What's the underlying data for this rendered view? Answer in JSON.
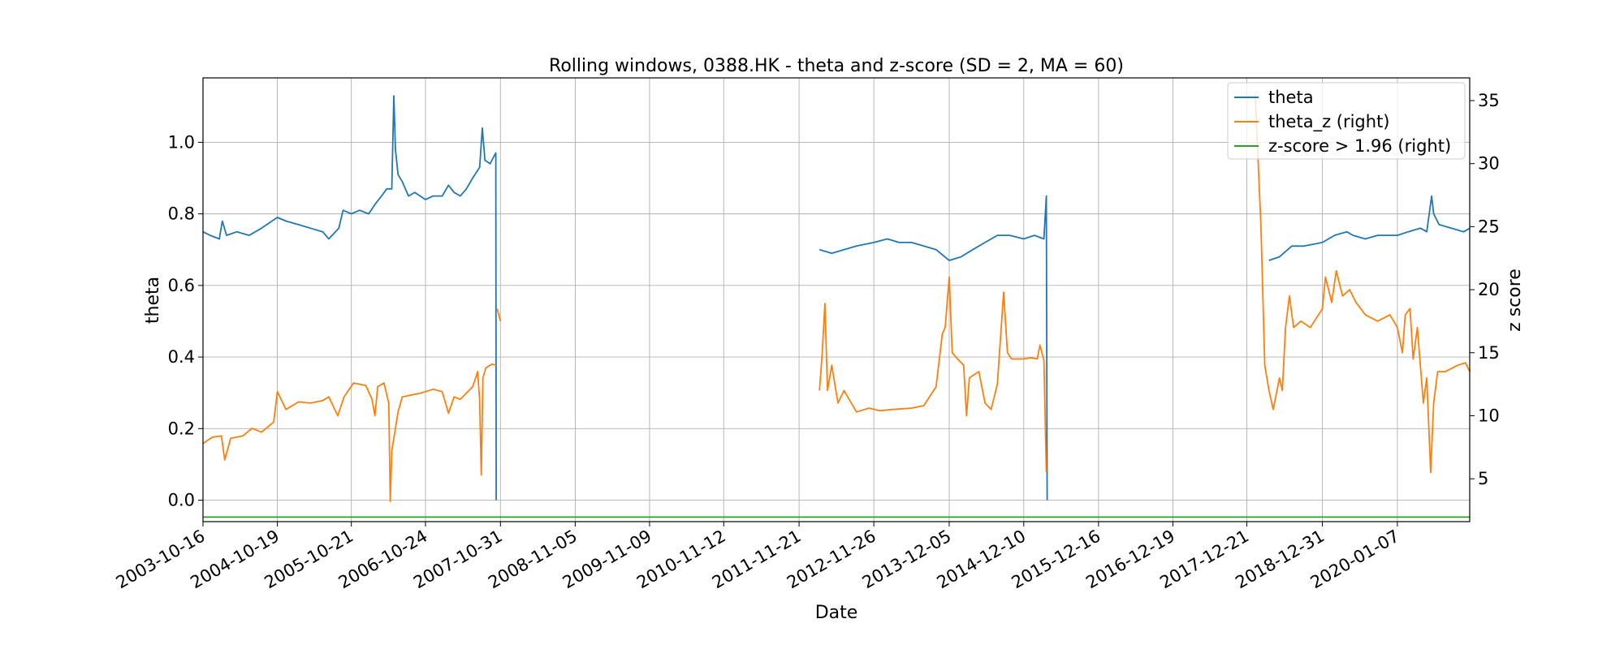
{
  "chart_data": {
    "type": "line",
    "title": "Rolling windows, 0388.HK - theta and z-score (SD = 2, MA = 60)",
    "xlabel": "Date",
    "ylabel": "theta",
    "ylabel_right": "z score",
    "xlim": [
      "2003-10-16",
      "2020-12-31"
    ],
    "ylim": [
      -0.06,
      1.18
    ],
    "ylim_right": [
      1.6,
      36.8
    ],
    "x_ticks": [
      "2003-10-16",
      "2004-10-19",
      "2005-10-21",
      "2006-10-24",
      "2007-10-31",
      "2008-11-05",
      "2009-11-09",
      "2010-11-12",
      "2011-11-21",
      "2012-11-26",
      "2013-12-05",
      "2014-12-10",
      "2015-12-16",
      "2016-12-19",
      "2017-12-21",
      "2018-12-31",
      "2020-01-07"
    ],
    "y_ticks": [
      "0.0",
      "0.2",
      "0.4",
      "0.6",
      "0.8",
      "1.0"
    ],
    "y_ticks_right": [
      "5",
      "10",
      "15",
      "20",
      "25",
      "30",
      "35"
    ],
    "grid": true,
    "legend_position": "top-right",
    "legend": [
      "theta",
      "theta_z (right)",
      "z-score > 1.96 (right)"
    ],
    "series": [
      {
        "name": "theta",
        "axis": "left",
        "color": "#1f77b4",
        "segments": [
          [
            [
              "2003-10-16",
              0.75
            ],
            [
              "2003-11-20",
              0.74
            ],
            [
              "2004-01-05",
              0.73
            ],
            [
              "2004-01-20",
              0.78
            ],
            [
              "2004-02-10",
              0.74
            ],
            [
              "2004-04-01",
              0.75
            ],
            [
              "2004-06-01",
              0.74
            ],
            [
              "2004-08-01",
              0.76
            ],
            [
              "2004-10-19",
              0.79
            ],
            [
              "2004-12-01",
              0.78
            ],
            [
              "2005-02-01",
              0.77
            ],
            [
              "2005-04-01",
              0.76
            ],
            [
              "2005-06-01",
              0.75
            ],
            [
              "2005-07-01",
              0.73
            ],
            [
              "2005-08-20",
              0.76
            ],
            [
              "2005-09-10",
              0.81
            ],
            [
              "2005-10-21",
              0.8
            ],
            [
              "2005-12-01",
              0.81
            ],
            [
              "2006-01-15",
              0.8
            ],
            [
              "2006-02-20",
              0.83
            ],
            [
              "2006-03-20",
              0.85
            ],
            [
              "2006-04-15",
              0.87
            ],
            [
              "2006-05-10",
              0.87
            ],
            [
              "2006-05-20",
              1.13
            ],
            [
              "2006-05-28",
              0.98
            ],
            [
              "2006-06-10",
              0.91
            ],
            [
              "2006-07-01",
              0.89
            ],
            [
              "2006-08-01",
              0.85
            ],
            [
              "2006-09-01",
              0.86
            ],
            [
              "2006-10-24",
              0.84
            ],
            [
              "2006-12-01",
              0.85
            ],
            [
              "2007-01-15",
              0.85
            ],
            [
              "2007-02-15",
              0.88
            ],
            [
              "2007-03-15",
              0.86
            ],
            [
              "2007-04-15",
              0.85
            ],
            [
              "2007-05-15",
              0.87
            ],
            [
              "2007-06-15",
              0.9
            ],
            [
              "2007-07-20",
              0.93
            ],
            [
              "2007-08-02",
              1.04
            ],
            [
              "2007-08-15",
              0.95
            ],
            [
              "2007-09-10",
              0.94
            ],
            [
              "2007-09-28",
              0.96
            ],
            [
              "2007-10-08",
              0.97
            ],
            [
              "2007-10-10",
              0.0
            ]
          ],
          [
            [
              "2012-03-01",
              0.7
            ],
            [
              "2012-05-01",
              0.69
            ],
            [
              "2012-07-01",
              0.7
            ],
            [
              "2012-09-01",
              0.71
            ],
            [
              "2012-11-26",
              0.72
            ],
            [
              "2013-02-01",
              0.73
            ],
            [
              "2013-04-01",
              0.72
            ],
            [
              "2013-06-01",
              0.72
            ],
            [
              "2013-08-01",
              0.71
            ],
            [
              "2013-10-01",
              0.7
            ],
            [
              "2013-12-05",
              0.67
            ],
            [
              "2014-02-01",
              0.68
            ],
            [
              "2014-04-01",
              0.7
            ],
            [
              "2014-06-01",
              0.72
            ],
            [
              "2014-08-01",
              0.74
            ],
            [
              "2014-10-01",
              0.74
            ],
            [
              "2014-12-10",
              0.73
            ],
            [
              "2015-02-01",
              0.74
            ],
            [
              "2015-03-20",
              0.73
            ],
            [
              "2015-04-01",
              0.85
            ],
            [
              "2015-04-05",
              0.0
            ]
          ],
          [
            [
              "2018-04-10",
              0.67
            ],
            [
              "2018-06-01",
              0.68
            ],
            [
              "2018-08-01",
              0.71
            ],
            [
              "2018-10-01",
              0.71
            ],
            [
              "2018-12-31",
              0.72
            ],
            [
              "2019-03-01",
              0.74
            ],
            [
              "2019-05-01",
              0.75
            ],
            [
              "2019-06-01",
              0.74
            ],
            [
              "2019-08-01",
              0.73
            ],
            [
              "2019-10-01",
              0.74
            ],
            [
              "2020-01-07",
              0.74
            ],
            [
              "2020-03-01",
              0.75
            ],
            [
              "2020-05-01",
              0.76
            ],
            [
              "2020-06-01",
              0.75
            ],
            [
              "2020-06-25",
              0.85
            ],
            [
              "2020-07-05",
              0.8
            ],
            [
              "2020-08-01",
              0.77
            ],
            [
              "2020-10-01",
              0.76
            ],
            [
              "2020-12-01",
              0.75
            ],
            [
              "2020-12-31",
              0.76
            ]
          ]
        ]
      },
      {
        "name": "theta_z (right)",
        "axis": "right",
        "color": "#ff7f0e",
        "segments": [
          [
            [
              "2003-10-16",
              7.8
            ],
            [
              "2003-12-01",
              8.3
            ],
            [
              "2004-01-15",
              8.4
            ],
            [
              "2004-02-01",
              6.5
            ],
            [
              "2004-03-01",
              8.2
            ],
            [
              "2004-05-01",
              8.4
            ],
            [
              "2004-06-15",
              9.0
            ],
            [
              "2004-08-01",
              8.7
            ],
            [
              "2004-10-01",
              9.5
            ],
            [
              "2004-10-19",
              11.9
            ],
            [
              "2004-12-01",
              10.5
            ],
            [
              "2005-02-01",
              11.1
            ],
            [
              "2005-04-01",
              11.0
            ],
            [
              "2005-06-01",
              11.2
            ],
            [
              "2005-07-01",
              11.5
            ],
            [
              "2005-08-15",
              10.0
            ],
            [
              "2005-09-15",
              11.5
            ],
            [
              "2005-11-01",
              12.6
            ],
            [
              "2006-01-01",
              12.4
            ],
            [
              "2006-02-01",
              11.3
            ],
            [
              "2006-02-15",
              10.0
            ],
            [
              "2006-03-01",
              12.3
            ],
            [
              "2006-04-01",
              12.6
            ],
            [
              "2006-04-25",
              11.0
            ],
            [
              "2006-05-02",
              3.2
            ],
            [
              "2006-05-10",
              7.2
            ],
            [
              "2006-06-10",
              10.3
            ],
            [
              "2006-07-01",
              11.5
            ],
            [
              "2006-08-01",
              11.6
            ],
            [
              "2006-10-01",
              11.8
            ],
            [
              "2006-12-01",
              12.1
            ],
            [
              "2007-01-15",
              11.9
            ],
            [
              "2007-02-15",
              10.2
            ],
            [
              "2007-03-15",
              11.5
            ],
            [
              "2007-04-15",
              11.3
            ],
            [
              "2007-05-15",
              11.8
            ],
            [
              "2007-06-15",
              12.3
            ],
            [
              "2007-07-10",
              13.5
            ],
            [
              "2007-07-20",
              11.2
            ],
            [
              "2007-07-28",
              5.3
            ],
            [
              "2007-08-05",
              13.0
            ],
            [
              "2007-08-20",
              13.8
            ],
            [
              "2007-09-20",
              14.1
            ],
            [
              "2007-10-10",
              14.0
            ]
          ],
          [
            [
              "2007-10-15",
              18.5
            ],
            [
              "2007-10-31",
              17.5
            ]
          ],
          [
            [
              "2012-03-01",
              12.0
            ],
            [
              "2012-03-15",
              15.0
            ],
            [
              "2012-03-28",
              18.9
            ],
            [
              "2012-04-10",
              12.0
            ],
            [
              "2012-05-01",
              14.0
            ],
            [
              "2012-06-01",
              11.0
            ],
            [
              "2012-07-01",
              12.0
            ],
            [
              "2012-09-01",
              10.3
            ],
            [
              "2012-11-01",
              10.6
            ],
            [
              "2012-12-26",
              10.4
            ],
            [
              "2013-03-01",
              10.5
            ],
            [
              "2013-06-01",
              10.6
            ],
            [
              "2013-08-01",
              10.8
            ],
            [
              "2013-10-01",
              12.3
            ],
            [
              "2013-11-01",
              16.5
            ],
            [
              "2013-11-15",
              17.0
            ],
            [
              "2013-12-05",
              21.0
            ],
            [
              "2013-12-20",
              15.0
            ],
            [
              "2014-01-15",
              14.5
            ],
            [
              "2014-02-15",
              14.0
            ],
            [
              "2014-03-01",
              10.0
            ],
            [
              "2014-03-15",
              13.0
            ],
            [
              "2014-05-01",
              13.5
            ],
            [
              "2014-06-01",
              11.0
            ],
            [
              "2014-07-01",
              10.5
            ],
            [
              "2014-08-01",
              12.5
            ],
            [
              "2014-09-01",
              19.8
            ],
            [
              "2014-09-20",
              15.0
            ],
            [
              "2014-10-10",
              14.5
            ],
            [
              "2014-11-01",
              14.5
            ],
            [
              "2014-12-10",
              14.5
            ],
            [
              "2015-01-15",
              14.6
            ],
            [
              "2015-02-15",
              14.5
            ],
            [
              "2015-02-28",
              15.6
            ],
            [
              "2015-03-20",
              14.4
            ],
            [
              "2015-04-01",
              5.5
            ]
          ],
          [
            [
              "2018-02-01",
              35.5
            ],
            [
              "2018-03-01",
              25.0
            ],
            [
              "2018-03-20",
              14.0
            ],
            [
              "2018-04-10",
              12.0
            ],
            [
              "2018-05-01",
              10.5
            ],
            [
              "2018-06-01",
              13.0
            ],
            [
              "2018-06-15",
              12.0
            ],
            [
              "2018-07-01",
              17.0
            ],
            [
              "2018-07-20",
              19.5
            ],
            [
              "2018-08-10",
              17.0
            ],
            [
              "2018-09-15",
              17.5
            ],
            [
              "2018-11-01",
              17.0
            ],
            [
              "2018-12-31",
              18.5
            ],
            [
              "2019-01-15",
              21.0
            ],
            [
              "2019-02-15",
              19.0
            ],
            [
              "2019-03-10",
              21.5
            ],
            [
              "2019-04-10",
              19.5
            ],
            [
              "2019-05-15",
              20.0
            ],
            [
              "2019-06-15",
              19.0
            ],
            [
              "2019-08-01",
              18.0
            ],
            [
              "2019-10-01",
              17.5
            ],
            [
              "2019-12-01",
              18.0
            ],
            [
              "2020-01-07",
              17.0
            ],
            [
              "2020-02-01",
              15.0
            ],
            [
              "2020-02-15",
              18.0
            ],
            [
              "2020-03-10",
              18.5
            ],
            [
              "2020-03-25",
              14.5
            ],
            [
              "2020-04-15",
              17.0
            ],
            [
              "2020-05-15",
              11.0
            ],
            [
              "2020-06-01",
              13.0
            ],
            [
              "2020-06-20",
              5.5
            ],
            [
              "2020-07-05",
              11.0
            ],
            [
              "2020-07-25",
              13.5
            ],
            [
              "2020-09-01",
              13.5
            ],
            [
              "2020-11-01",
              14.0
            ],
            [
              "2020-12-10",
              14.2
            ],
            [
              "2020-12-31",
              13.5
            ]
          ]
        ]
      },
      {
        "name": "z-score > 1.96 (right)",
        "axis": "right",
        "color": "#2ca02c",
        "segments": [
          [
            [
              "2003-10-16",
              1.96
            ],
            [
              "2020-12-31",
              1.96
            ]
          ]
        ]
      }
    ]
  }
}
